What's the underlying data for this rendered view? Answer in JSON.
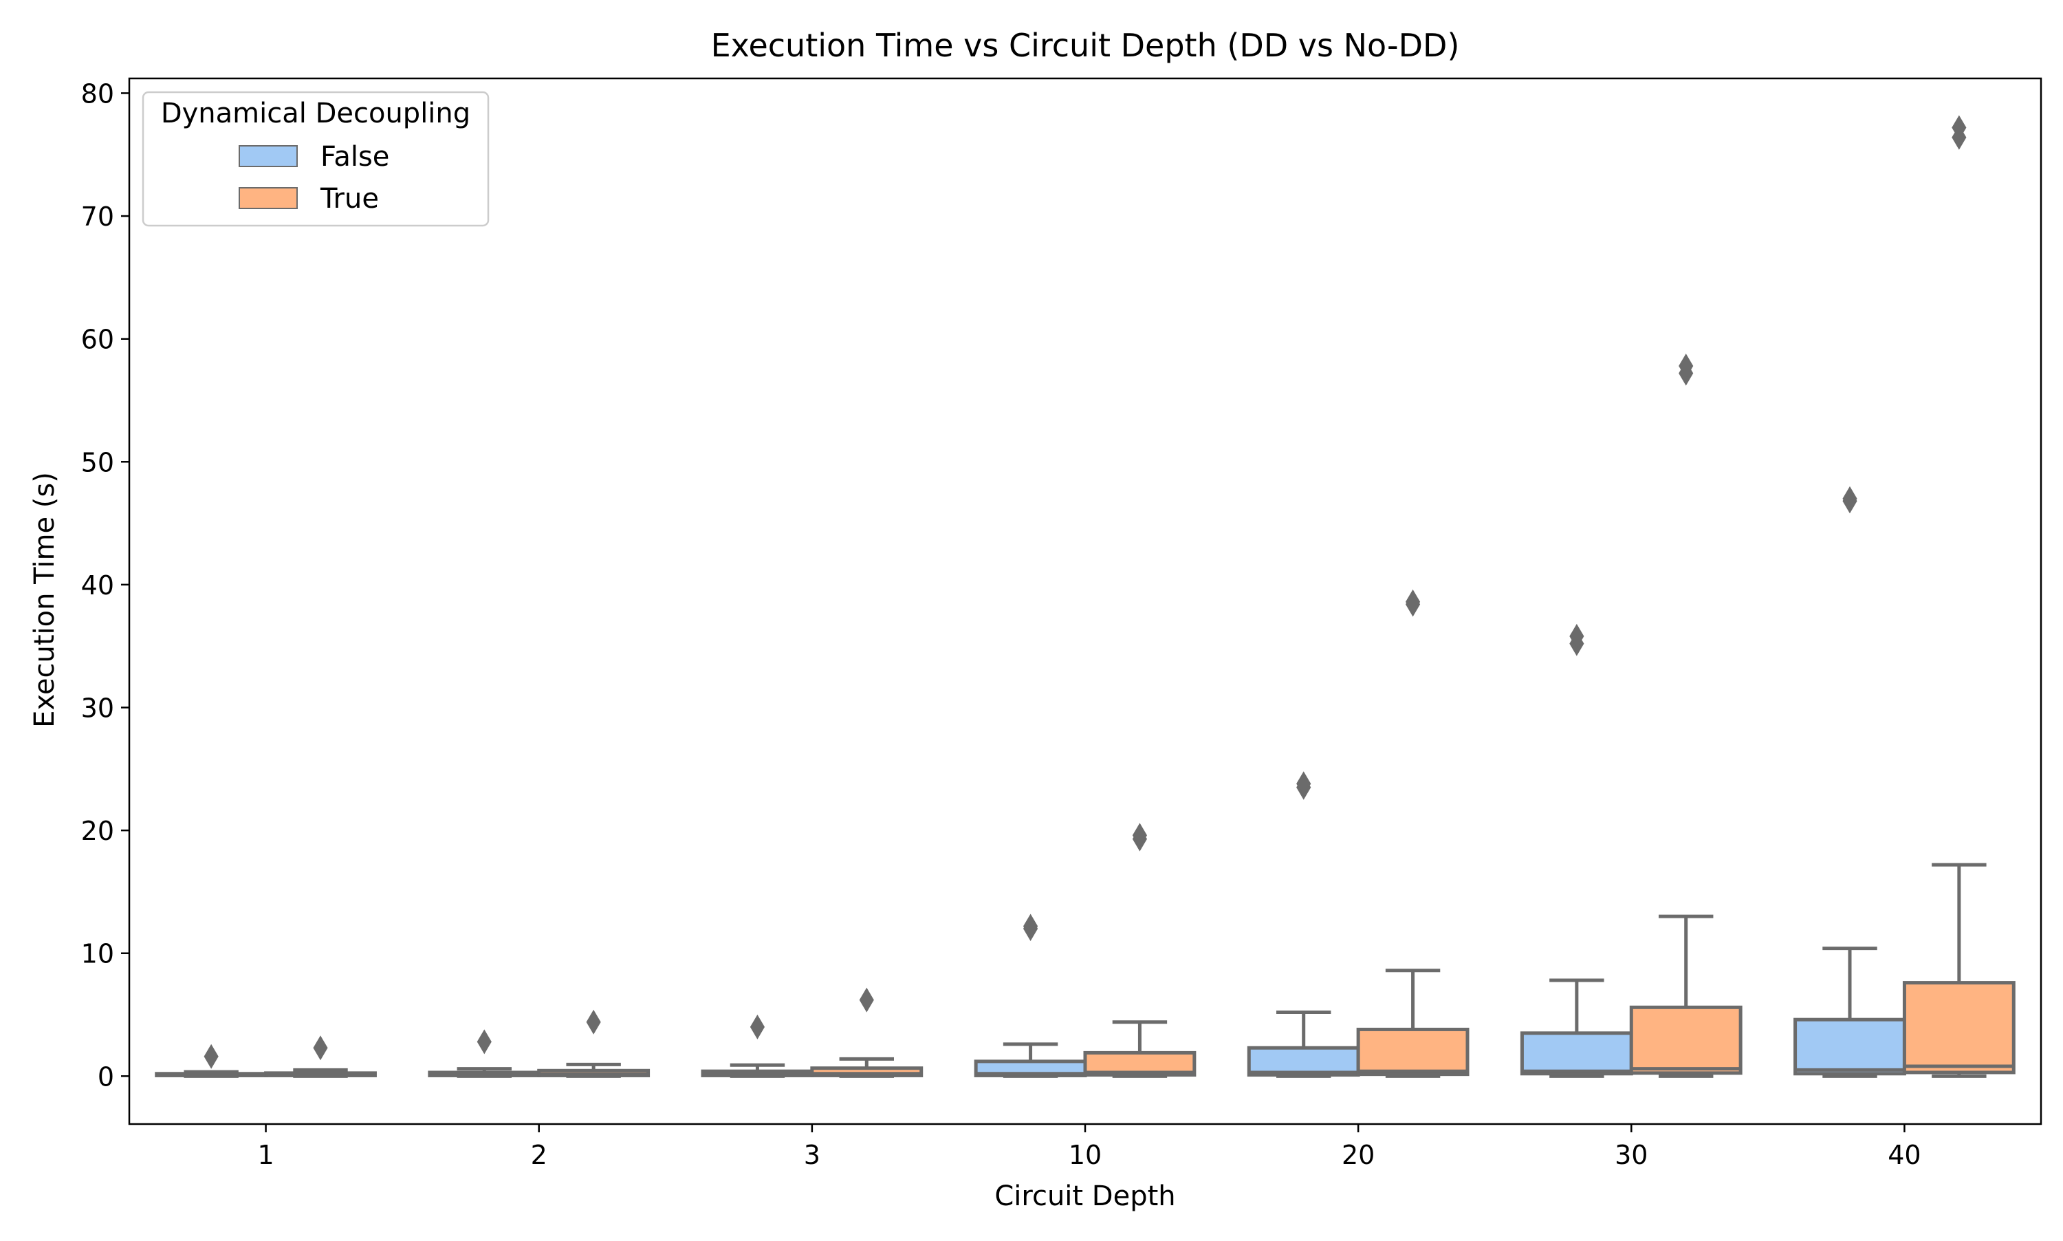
{
  "chart_data": {
    "type": "box",
    "title": "Execution Time vs Circuit Depth (DD vs No-DD)",
    "xlabel": "Circuit Depth",
    "ylabel": "Execution Time (s)",
    "categories": [
      "1",
      "2",
      "3",
      "10",
      "20",
      "30",
      "40"
    ],
    "ylim": [
      -3.9,
      81.2
    ],
    "yticks": [
      0,
      10,
      20,
      30,
      40,
      50,
      60,
      70,
      80
    ],
    "legend": {
      "title": "Dynamical Decoupling",
      "position": "top-left",
      "entries": [
        "False",
        "True"
      ]
    },
    "colors": {
      "False": "#a1c9f4",
      "True": "#ffb482",
      "edge": "#6b6b6b"
    },
    "series": [
      {
        "name": "False",
        "boxes": [
          {
            "q1": 0.05,
            "median": 0.1,
            "q3": 0.2,
            "whisker_low": 0.0,
            "whisker_high": 0.35,
            "outliers": [
              1.6
            ]
          },
          {
            "q1": 0.05,
            "median": 0.1,
            "q3": 0.3,
            "whisker_low": 0.0,
            "whisker_high": 0.6,
            "outliers": [
              2.8
            ]
          },
          {
            "q1": 0.05,
            "median": 0.15,
            "q3": 0.4,
            "whisker_low": 0.0,
            "whisker_high": 0.9,
            "outliers": [
              4.0
            ]
          },
          {
            "q1": 0.05,
            "median": 0.2,
            "q3": 1.2,
            "whisker_low": 0.0,
            "whisker_high": 2.6,
            "outliers": [
              12.0,
              12.2
            ]
          },
          {
            "q1": 0.1,
            "median": 0.3,
            "q3": 2.3,
            "whisker_low": 0.0,
            "whisker_high": 5.2,
            "outliers": [
              23.5,
              23.8
            ]
          },
          {
            "q1": 0.2,
            "median": 0.4,
            "q3": 3.5,
            "whisker_low": 0.0,
            "whisker_high": 7.8,
            "outliers": [
              35.2,
              35.8
            ]
          },
          {
            "q1": 0.2,
            "median": 0.5,
            "q3": 4.6,
            "whisker_low": 0.0,
            "whisker_high": 10.4,
            "outliers": [
              46.8,
              47.0
            ]
          }
        ]
      },
      {
        "name": "True",
        "boxes": [
          {
            "q1": 0.05,
            "median": 0.1,
            "q3": 0.25,
            "whisker_low": 0.0,
            "whisker_high": 0.5,
            "outliers": [
              2.3
            ]
          },
          {
            "q1": 0.05,
            "median": 0.15,
            "q3": 0.45,
            "whisker_low": 0.0,
            "whisker_high": 0.95,
            "outliers": [
              4.4
            ]
          },
          {
            "q1": 0.05,
            "median": 0.2,
            "q3": 0.65,
            "whisker_low": 0.0,
            "whisker_high": 1.4,
            "outliers": [
              6.2
            ]
          },
          {
            "q1": 0.1,
            "median": 0.3,
            "q3": 1.9,
            "whisker_low": 0.0,
            "whisker_high": 4.4,
            "outliers": [
              19.3,
              19.6
            ]
          },
          {
            "q1": 0.15,
            "median": 0.4,
            "q3": 3.8,
            "whisker_low": 0.0,
            "whisker_high": 8.6,
            "outliers": [
              38.4,
              38.6
            ]
          },
          {
            "q1": 0.25,
            "median": 0.6,
            "q3": 5.6,
            "whisker_low": 0.0,
            "whisker_high": 13.0,
            "outliers": [
              57.2,
              57.8
            ]
          },
          {
            "q1": 0.3,
            "median": 0.8,
            "q3": 7.6,
            "whisker_low": 0.0,
            "whisker_high": 17.2,
            "outliers": [
              76.4,
              77.2
            ]
          }
        ]
      }
    ]
  }
}
